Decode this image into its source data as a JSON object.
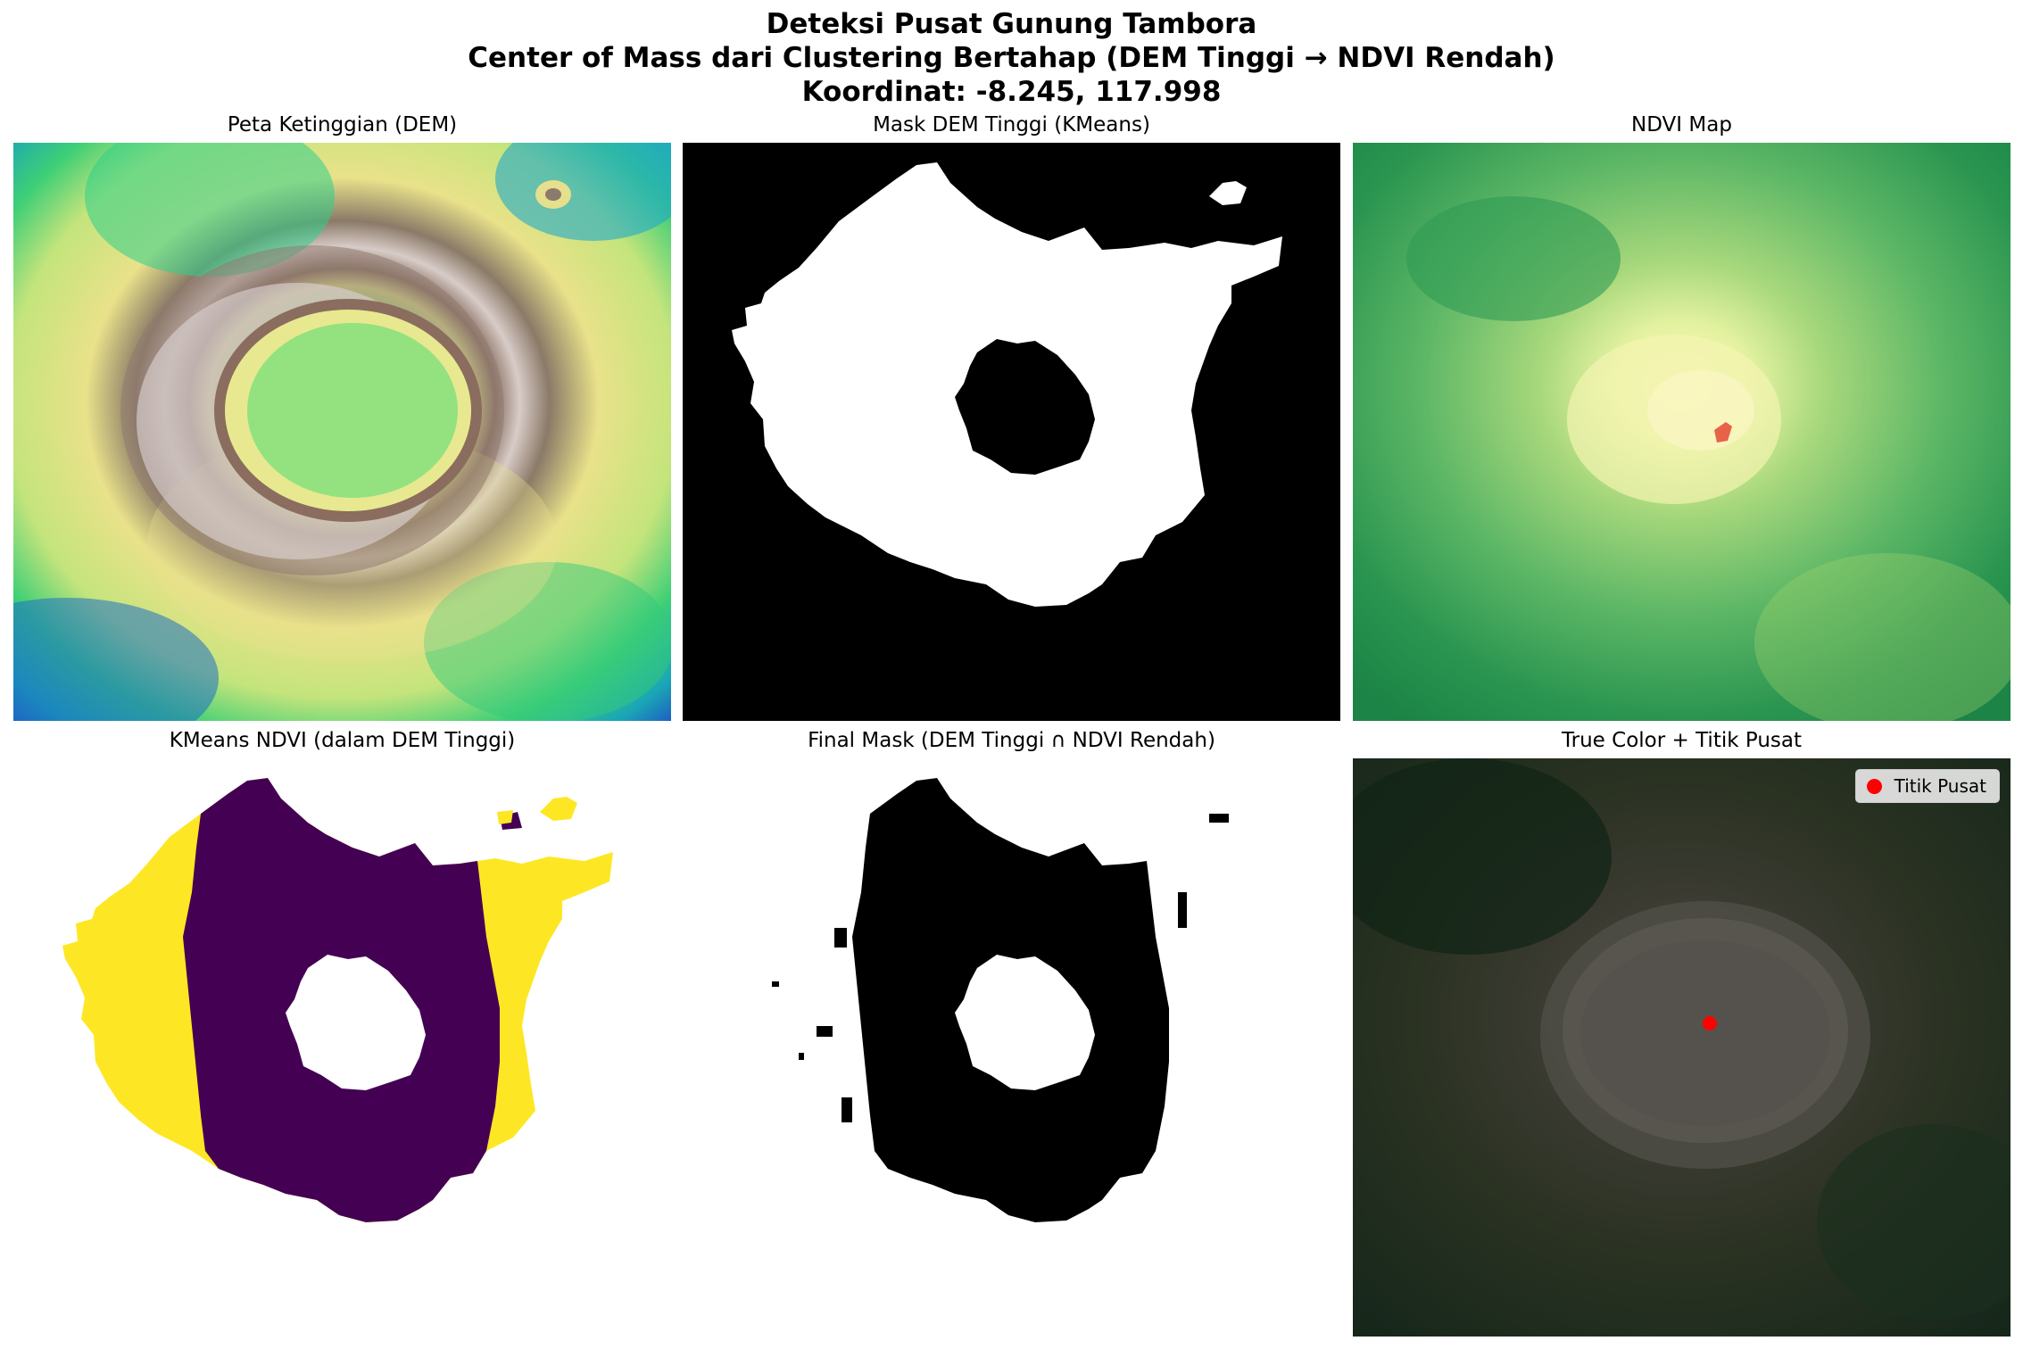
{
  "figure": {
    "title_line1": "Deteksi Pusat Gunung Tambora",
    "title_line2": "Center of Mass dari Clustering Bertahap (DEM Tinggi → NDVI Rendah)",
    "title_line3": "Koordinat: -8.245, 117.998"
  },
  "panels": {
    "dem": {
      "title": "Peta Ketinggian (DEM)"
    },
    "dem_mask": {
      "title": "Mask DEM Tinggi (KMeans)"
    },
    "ndvi": {
      "title": "NDVI Map"
    },
    "kmeans_ndvi": {
      "title": "KMeans NDVI (dalam DEM Tinggi)"
    },
    "final_mask": {
      "title": "Final Mask (DEM Tinggi ∩ NDVI Rendah)"
    },
    "true_color": {
      "title": "True Color + Titik Pusat"
    }
  },
  "legend": {
    "label": "Titik Pusat",
    "marker_color": "#ff0000"
  },
  "colors": {
    "kmeans_cluster_a": "#fde725",
    "kmeans_cluster_b": "#440154",
    "mask_fill": "#ffffff",
    "mask_background": "#000000",
    "center_point": "#ff0000"
  }
}
